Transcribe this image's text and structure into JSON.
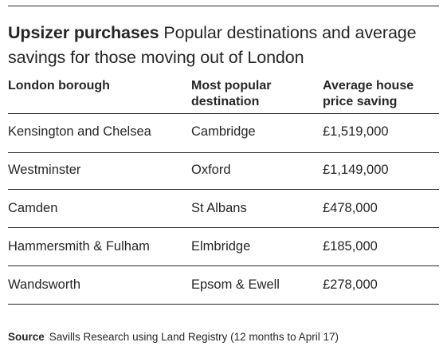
{
  "title": {
    "lead": "Upsizer purchases",
    "rest": "Popular destinations and average savings for those moving out of London"
  },
  "columns": {
    "borough": "London borough",
    "destination": "Most popular destination",
    "saving": "Average house price saving"
  },
  "rows": [
    {
      "borough": "Kensington and Chelsea",
      "destination": "Cambridge",
      "saving": "£1,519,000"
    },
    {
      "borough": "Westminster",
      "destination": "Oxford",
      "saving": "£1,149,000"
    },
    {
      "borough": "Camden",
      "destination": "St Albans",
      "saving": "£478,000"
    },
    {
      "borough": "Hammersmith & Fulham",
      "destination": "Elmbridge",
      "saving": "£185,000"
    },
    {
      "borough": "Wandsworth",
      "destination": "Epsom & Ewell",
      "saving": "£278,000"
    }
  ],
  "source": {
    "label": "Source",
    "text": "Savills Research using Land Registry (12 months to April 17)"
  }
}
